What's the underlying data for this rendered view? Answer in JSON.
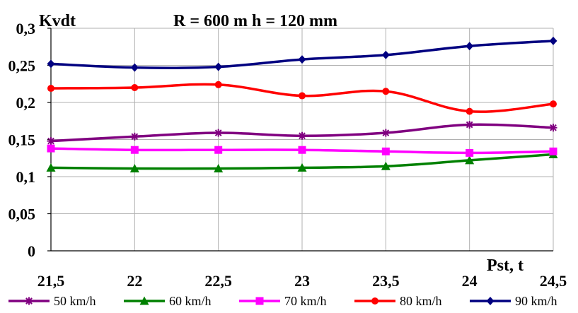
{
  "chart_data": {
    "type": "line",
    "title": "R = 600 m  h = 120 mm",
    "ylabel": "Kvdt",
    "xlabel": "Pst, t",
    "x": [
      21.5,
      22,
      22.5,
      23,
      23.5,
      24,
      24.5
    ],
    "x_tick_labels": [
      "21,5",
      "22",
      "22,5",
      "23",
      "23,5",
      "24",
      "24,5"
    ],
    "ylim": [
      0,
      0.3
    ],
    "y_ticks": [
      0,
      0.05,
      0.1,
      0.15,
      0.2,
      0.25,
      0.3
    ],
    "y_tick_labels": [
      "0",
      "0,05",
      "0,1",
      "0,15",
      "0,2",
      "0,25",
      "0,3"
    ],
    "grid": true,
    "legend_position": "bottom",
    "series": [
      {
        "name": "50 km/h",
        "color": "#800080",
        "marker": "star",
        "values": [
          0.148,
          0.154,
          0.159,
          0.155,
          0.159,
          0.17,
          0.166
        ]
      },
      {
        "name": "60 km/h",
        "color": "#008000",
        "marker": "triangle",
        "values": [
          0.112,
          0.111,
          0.111,
          0.112,
          0.114,
          0.122,
          0.13
        ]
      },
      {
        "name": "70 km/h",
        "color": "#FF00FF",
        "marker": "square",
        "values": [
          0.138,
          0.136,
          0.136,
          0.136,
          0.134,
          0.132,
          0.134
        ]
      },
      {
        "name": "80 km/h",
        "color": "#FF0000",
        "marker": "circle",
        "values": [
          0.219,
          0.22,
          0.224,
          0.209,
          0.215,
          0.188,
          0.198
        ]
      },
      {
        "name": "90 km/h",
        "color": "#000080",
        "marker": "diamond",
        "values": [
          0.252,
          0.247,
          0.248,
          0.258,
          0.264,
          0.276,
          0.283
        ]
      }
    ]
  }
}
